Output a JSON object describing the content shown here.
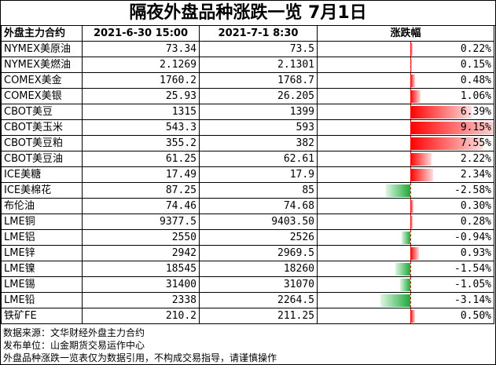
{
  "title": "隔夜外盘品种涨跌一览 7月1日",
  "headers": [
    "外盘主力合约",
    "2021-6-30 15:00",
    "2021-7-1 8:30",
    "涨跌幅"
  ],
  "rows": [
    {
      "name": "NYMEX美原油",
      "prev": "73.34",
      "cur": "73.5",
      "pct": "0.22%",
      "value": 0.22
    },
    {
      "name": "NYMEX美燃油",
      "prev": "2.1269",
      "cur": "2.1301",
      "pct": "0.15%",
      "value": 0.15
    },
    {
      "name": "COMEX美金",
      "prev": "1760.2",
      "cur": "1768.7",
      "pct": "0.48%",
      "value": 0.48
    },
    {
      "name": "COMEX美银",
      "prev": "25.93",
      "cur": "26.205",
      "pct": "1.06%",
      "value": 1.06
    },
    {
      "name": "CBOT美豆",
      "prev": "1315",
      "cur": "1399",
      "pct": "6.39%",
      "value": 6.39
    },
    {
      "name": "CBOT美玉米",
      "prev": "543.3",
      "cur": "593",
      "pct": "9.15%",
      "value": 9.15
    },
    {
      "name": "CBOT美豆粕",
      "prev": "355.2",
      "cur": "382",
      "pct": "7.55%",
      "value": 7.55
    },
    {
      "name": "CBOT美豆油",
      "prev": "61.25",
      "cur": "62.61",
      "pct": "2.22%",
      "value": 2.22
    },
    {
      "name": "ICE美糖",
      "prev": "17.49",
      "cur": "17.9",
      "pct": "2.34%",
      "value": 2.34
    },
    {
      "name": "ICE美棉花",
      "prev": "87.25",
      "cur": "85",
      "pct": "-2.58%",
      "value": -2.58
    },
    {
      "name": "布伦油",
      "prev": "74.46",
      "cur": "74.68",
      "pct": "0.30%",
      "value": 0.3
    },
    {
      "name": "LME铜",
      "prev": "9377.5",
      "cur": "9403.50",
      "pct": "0.28%",
      "value": 0.28
    },
    {
      "name": "LME铝",
      "prev": "2550",
      "cur": "2526",
      "pct": "-0.94%",
      "value": -0.94
    },
    {
      "name": "LME锌",
      "prev": "2942",
      "cur": "2969.5",
      "pct": "0.93%",
      "value": 0.93
    },
    {
      "name": "LME镍",
      "prev": "18545",
      "cur": "18260",
      "pct": "-1.54%",
      "value": -1.54
    },
    {
      "name": "LME锡",
      "prev": "31400",
      "cur": "31070",
      "pct": "-1.05%",
      "value": -1.05
    },
    {
      "name": "LME铅",
      "prev": "2338",
      "cur": "2264.5",
      "pct": "-3.14%",
      "value": -3.14
    },
    {
      "name": "铁矿FE",
      "prev": "210.2",
      "cur": "211.25",
      "pct": "0.50%",
      "value": 0.5
    }
  ],
  "footer": [
    "数据来源：文华财经外盘主力合约",
    "发布单位：山金期货交易运作中心",
    "外盘品种涨跌一览表仅为数据引用，不构成交易指导，请谨慎操作"
  ],
  "colors": {
    "positive": "#ff0000",
    "negative": "#1fa83a",
    "axis": "#cc0000"
  }
}
